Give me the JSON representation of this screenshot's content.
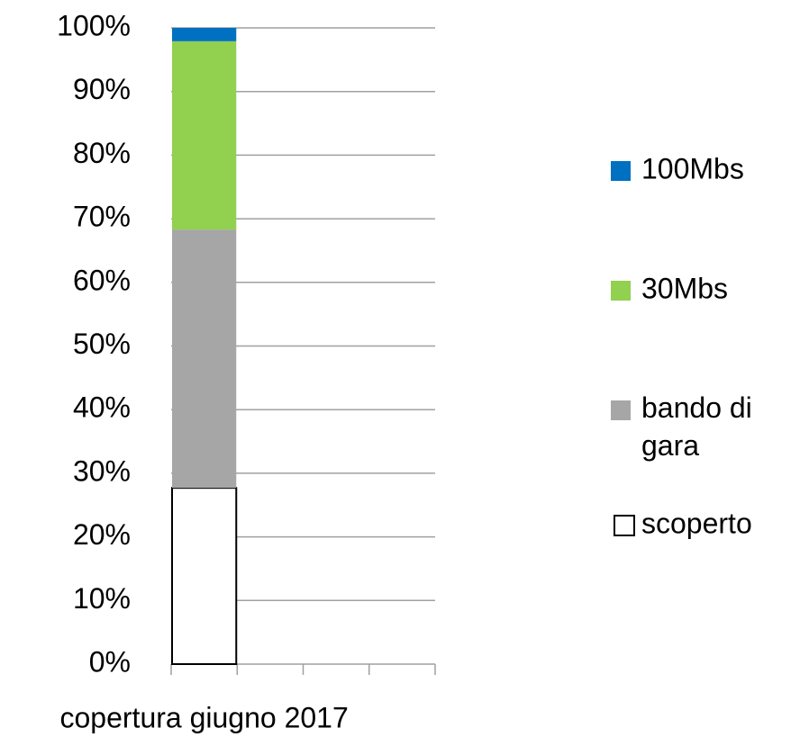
{
  "chart_data": {
    "type": "stacked_bar",
    "categories": [
      "copertura giugno 2017",
      null,
      null,
      null
    ],
    "series": [
      {
        "name": "scoperto",
        "color": "#ffffff",
        "values": [
          27.7,
          null,
          null,
          null
        ]
      },
      {
        "name": "bando di gara",
        "color": "#a6a6a6",
        "values": [
          40.6,
          null,
          null,
          null
        ]
      },
      {
        "name": "30Mbs",
        "color": "#92d050",
        "values": [
          29.6,
          null,
          null,
          null
        ]
      },
      {
        "name": "100Mbs",
        "color": "#0070c0",
        "values": [
          2.1,
          null,
          null,
          null
        ]
      }
    ],
    "ylim": [
      0,
      100
    ],
    "yticks": [
      {
        "value": 0,
        "label": "0%"
      },
      {
        "value": 10,
        "label": "10%"
      },
      {
        "value": 20,
        "label": "20%"
      },
      {
        "value": 30,
        "label": "30%"
      },
      {
        "value": 40,
        "label": "40%"
      },
      {
        "value": 50,
        "label": "50%"
      },
      {
        "value": 60,
        "label": "60%"
      },
      {
        "value": 70,
        "label": "70%"
      },
      {
        "value": 80,
        "label": "80%"
      },
      {
        "value": 90,
        "label": "90%"
      },
      {
        "value": 100,
        "label": "100%"
      }
    ],
    "grid": true,
    "legend": "right"
  }
}
